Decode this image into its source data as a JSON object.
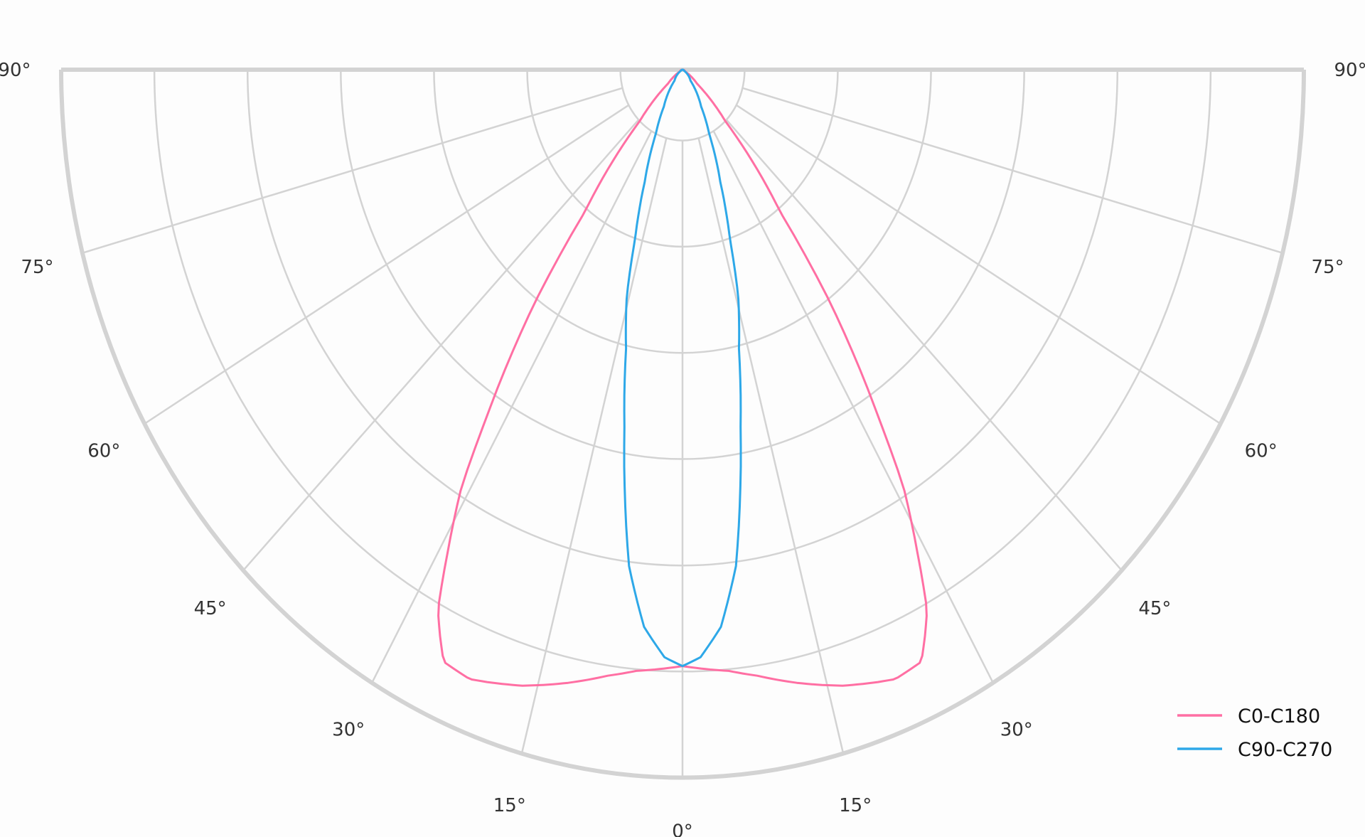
{
  "chart_data": {
    "type": "polar",
    "subtype": "luminous-intensity-distribution (lower half, symmetric)",
    "angle_unit": "degrees",
    "angular_ticks": [
      "0°",
      "15°",
      "30°",
      "45°",
      "60°",
      "75°",
      "90°"
    ],
    "angular_tick_values": [
      0,
      15,
      30,
      45,
      60,
      75,
      90
    ],
    "radial_rings_relative": [
      0.1,
      0.25,
      0.4,
      0.55,
      0.7,
      0.85,
      1.0
    ],
    "radial_tick_labels_shown": false,
    "grid": true,
    "legend_position": "bottom-right",
    "series": [
      {
        "name": "C0-C180",
        "color": "#ff6fa3",
        "theta": [
          0,
          5,
          8,
          12,
          16.5,
          20,
          21.7,
          24.7,
          26,
          27.3,
          29,
          31.1,
          32.7,
          35.9,
          38.1,
          43.5,
          50,
          60,
          90
        ],
        "r_relative": [
          0.842,
          0.852,
          0.864,
          0.885,
          0.907,
          0.92,
          0.926,
          0.92,
          0.89,
          0.858,
          0.78,
          0.689,
          0.585,
          0.403,
          0.254,
          0.1,
          0.03,
          0.005,
          0
        ]
      },
      {
        "name": "C90-C270",
        "color": "#2ea8e8",
        "theta": [
          0,
          2,
          4.5,
          7,
          10.5,
          13,
          15.7,
          17.7,
          21,
          25.4,
          30,
          40,
          60,
          90
        ],
        "r_relative": [
          0.842,
          0.83,
          0.789,
          0.706,
          0.513,
          0.404,
          0.331,
          0.251,
          0.17,
          0.1,
          0.06,
          0.02,
          0.003,
          0
        ]
      }
    ]
  }
}
